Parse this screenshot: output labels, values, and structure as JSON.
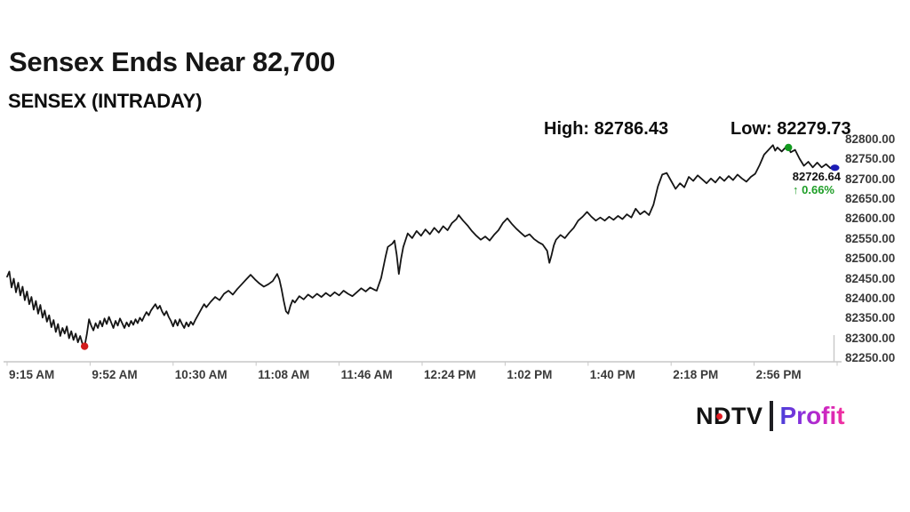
{
  "header": {
    "title": "Sensex Ends Near 82,700",
    "subtitle": "SENSEX (INTRADAY)"
  },
  "stats": {
    "high_label": "High: 82786.43",
    "low_label": "Low: 82279.73"
  },
  "last_trade": {
    "price": "82726.64",
    "change_percent": "↑ 0.66%",
    "change_color": "#1e9e27"
  },
  "logo": {
    "brand": "NDTV",
    "product": "Profit",
    "brand_color": "#131313",
    "dot_color": "#e01b22",
    "product_gradient": [
      "#4a3fd8",
      "#8a30dc",
      "#c926c4",
      "#f5309c"
    ]
  },
  "chart_data": {
    "type": "line",
    "title": "SENSEX (INTRADAY)",
    "line_color": "#151515",
    "axis_color": "#c7c7c7",
    "high": 82786.43,
    "low": 82279.73,
    "close": 82726.64,
    "change_percent": 0.66,
    "y_min": 82250,
    "y_max": 82800,
    "y_tick_step": 50,
    "y_tick_labels": [
      "82800.00",
      "82750.00",
      "82700.00",
      "82650.00",
      "82600.00",
      "82550.00",
      "82500.00",
      "82450.00",
      "82400.00",
      "82350.00",
      "82300.00",
      "82250.00"
    ],
    "x_tick_labels": [
      "9:15 AM",
      "9:52 AM",
      "10:30 AM",
      "11:08 AM",
      "11:46 AM",
      "12:24 PM",
      "1:02 PM",
      "1:40 PM",
      "2:18 PM",
      "2:56 PM"
    ],
    "x_total_minutes": 375,
    "grid": false,
    "legend": false,
    "markers": [
      {
        "name": "low-dot",
        "minute": 35,
        "value": 82280,
        "color": "#d21b1b",
        "shape": "circle"
      },
      {
        "name": "high-dot",
        "minute": 353,
        "value": 82780,
        "color": "#129a1f",
        "shape": "circle"
      },
      {
        "name": "close-dot",
        "minute": 374,
        "value": 82729,
        "color": "#1d1db6",
        "shape": "ellipse"
      }
    ],
    "points": [
      [
        0,
        82455
      ],
      [
        1,
        82468
      ],
      [
        2,
        82428
      ],
      [
        3,
        82450
      ],
      [
        4,
        82416
      ],
      [
        5,
        82440
      ],
      [
        6,
        82408
      ],
      [
        7,
        82430
      ],
      [
        8,
        82396
      ],
      [
        9,
        82418
      ],
      [
        10,
        82386
      ],
      [
        11,
        82404
      ],
      [
        12,
        82372
      ],
      [
        13,
        82394
      ],
      [
        14,
        82362
      ],
      [
        15,
        82384
      ],
      [
        16,
        82352
      ],
      [
        17,
        82370
      ],
      [
        18,
        82342
      ],
      [
        19,
        82358
      ],
      [
        20,
        82328
      ],
      [
        21,
        82346
      ],
      [
        22,
        82316
      ],
      [
        23,
        82336
      ],
      [
        24,
        82306
      ],
      [
        25,
        82326
      ],
      [
        26,
        82312
      ],
      [
        27,
        82330
      ],
      [
        28,
        82300
      ],
      [
        29,
        82318
      ],
      [
        30,
        82296
      ],
      [
        31,
        82312
      ],
      [
        32,
        82290
      ],
      [
        33,
        82306
      ],
      [
        34,
        82287
      ],
      [
        35,
        82280
      ],
      [
        36,
        82310
      ],
      [
        37,
        82348
      ],
      [
        38,
        82332
      ],
      [
        39,
        82320
      ],
      [
        40,
        82338
      ],
      [
        41,
        82326
      ],
      [
        42,
        82344
      ],
      [
        43,
        82330
      ],
      [
        44,
        82350
      ],
      [
        45,
        82336
      ],
      [
        46,
        82354
      ],
      [
        47,
        82340
      ],
      [
        48,
        82326
      ],
      [
        49,
        82344
      ],
      [
        50,
        82332
      ],
      [
        51,
        82350
      ],
      [
        52,
        82338
      ],
      [
        53,
        82326
      ],
      [
        54,
        82340
      ],
      [
        55,
        82330
      ],
      [
        56,
        82344
      ],
      [
        57,
        82334
      ],
      [
        58,
        82348
      ],
      [
        59,
        82338
      ],
      [
        60,
        82352
      ],
      [
        61,
        82344
      ],
      [
        62,
        82356
      ],
      [
        63,
        82366
      ],
      [
        64,
        82358
      ],
      [
        65,
        82370
      ],
      [
        66,
        82378
      ],
      [
        67,
        82386
      ],
      [
        68,
        82374
      ],
      [
        69,
        82382
      ],
      [
        70,
        82368
      ],
      [
        71,
        82358
      ],
      [
        72,
        82368
      ],
      [
        73,
        82354
      ],
      [
        74,
        82344
      ],
      [
        75,
        82330
      ],
      [
        76,
        82346
      ],
      [
        77,
        82332
      ],
      [
        78,
        82348
      ],
      [
        79,
        82336
      ],
      [
        80,
        82326
      ],
      [
        81,
        82340
      ],
      [
        82,
        82330
      ],
      [
        83,
        82342
      ],
      [
        84,
        82334
      ],
      [
        85,
        82346
      ],
      [
        86,
        82356
      ],
      [
        87,
        82366
      ],
      [
        88,
        82376
      ],
      [
        89,
        82386
      ],
      [
        90,
        82378
      ],
      [
        92,
        82392
      ],
      [
        94,
        82404
      ],
      [
        96,
        82396
      ],
      [
        98,
        82412
      ],
      [
        100,
        82420
      ],
      [
        102,
        82410
      ],
      [
        104,
        82424
      ],
      [
        106,
        82436
      ],
      [
        108,
        82448
      ],
      [
        110,
        82460
      ],
      [
        112,
        82448
      ],
      [
        114,
        82438
      ],
      [
        116,
        82430
      ],
      [
        118,
        82436
      ],
      [
        120,
        82444
      ],
      [
        122,
        82462
      ],
      [
        123,
        82448
      ],
      [
        124,
        82424
      ],
      [
        125,
        82394
      ],
      [
        126,
        82368
      ],
      [
        127,
        82362
      ],
      [
        128,
        82382
      ],
      [
        129,
        82396
      ],
      [
        130,
        82390
      ],
      [
        132,
        82406
      ],
      [
        134,
        82398
      ],
      [
        136,
        82410
      ],
      [
        138,
        82402
      ],
      [
        140,
        82412
      ],
      [
        142,
        82404
      ],
      [
        144,
        82414
      ],
      [
        146,
        82406
      ],
      [
        148,
        82416
      ],
      [
        150,
        82408
      ],
      [
        152,
        82420
      ],
      [
        154,
        82412
      ],
      [
        156,
        82406
      ],
      [
        158,
        82416
      ],
      [
        160,
        82426
      ],
      [
        162,
        82418
      ],
      [
        164,
        82428
      ],
      [
        166,
        82422
      ],
      [
        167,
        82420
      ],
      [
        169,
        82452
      ],
      [
        171,
        82506
      ],
      [
        172,
        82530
      ],
      [
        174,
        82538
      ],
      [
        175,
        82546
      ],
      [
        176,
        82510
      ],
      [
        177,
        82462
      ],
      [
        178,
        82500
      ],
      [
        179,
        82530
      ],
      [
        181,
        82564
      ],
      [
        183,
        82552
      ],
      [
        185,
        82570
      ],
      [
        187,
        82558
      ],
      [
        189,
        82574
      ],
      [
        191,
        82562
      ],
      [
        193,
        82578
      ],
      [
        195,
        82566
      ],
      [
        197,
        82582
      ],
      [
        199,
        82572
      ],
      [
        201,
        82590
      ],
      [
        203,
        82600
      ],
      [
        204,
        82610
      ],
      [
        206,
        82596
      ],
      [
        208,
        82584
      ],
      [
        210,
        82570
      ],
      [
        212,
        82558
      ],
      [
        214,
        82548
      ],
      [
        216,
        82556
      ],
      [
        218,
        82546
      ],
      [
        220,
        82560
      ],
      [
        222,
        82572
      ],
      [
        224,
        82590
      ],
      [
        226,
        82602
      ],
      [
        228,
        82588
      ],
      [
        230,
        82576
      ],
      [
        232,
        82566
      ],
      [
        234,
        82556
      ],
      [
        236,
        82562
      ],
      [
        238,
        82550
      ],
      [
        240,
        82542
      ],
      [
        242,
        82536
      ],
      [
        244,
        82520
      ],
      [
        245,
        82490
      ],
      [
        246,
        82510
      ],
      [
        247,
        82534
      ],
      [
        248,
        82548
      ],
      [
        250,
        82560
      ],
      [
        252,
        82552
      ],
      [
        254,
        82566
      ],
      [
        256,
        82578
      ],
      [
        258,
        82596
      ],
      [
        260,
        82606
      ],
      [
        262,
        82618
      ],
      [
        264,
        82606
      ],
      [
        266,
        82596
      ],
      [
        268,
        82604
      ],
      [
        270,
        82596
      ],
      [
        272,
        82606
      ],
      [
        274,
        82598
      ],
      [
        276,
        82608
      ],
      [
        278,
        82600
      ],
      [
        280,
        82612
      ],
      [
        282,
        82604
      ],
      [
        284,
        82626
      ],
      [
        286,
        82612
      ],
      [
        288,
        82620
      ],
      [
        290,
        82610
      ],
      [
        292,
        82636
      ],
      [
        294,
        82682
      ],
      [
        296,
        82712
      ],
      [
        298,
        82716
      ],
      [
        300,
        82696
      ],
      [
        302,
        82676
      ],
      [
        304,
        82690
      ],
      [
        306,
        82680
      ],
      [
        308,
        82706
      ],
      [
        310,
        82696
      ],
      [
        312,
        82710
      ],
      [
        314,
        82700
      ],
      [
        316,
        82690
      ],
      [
        318,
        82702
      ],
      [
        320,
        82692
      ],
      [
        322,
        82706
      ],
      [
        324,
        82696
      ],
      [
        326,
        82708
      ],
      [
        328,
        82698
      ],
      [
        330,
        82712
      ],
      [
        332,
        82702
      ],
      [
        334,
        82694
      ],
      [
        336,
        82706
      ],
      [
        338,
        82714
      ],
      [
        340,
        82736
      ],
      [
        342,
        82762
      ],
      [
        344,
        82774
      ],
      [
        346,
        82786
      ],
      [
        347,
        82772
      ],
      [
        348,
        82780
      ],
      [
        350,
        82770
      ],
      [
        352,
        82782
      ],
      [
        353,
        82780
      ],
      [
        354,
        82768
      ],
      [
        356,
        82774
      ],
      [
        358,
        82752
      ],
      [
        360,
        82734
      ],
      [
        362,
        82744
      ],
      [
        364,
        82730
      ],
      [
        366,
        82742
      ],
      [
        368,
        82730
      ],
      [
        370,
        82738
      ],
      [
        372,
        82728
      ],
      [
        374,
        82727
      ]
    ]
  }
}
